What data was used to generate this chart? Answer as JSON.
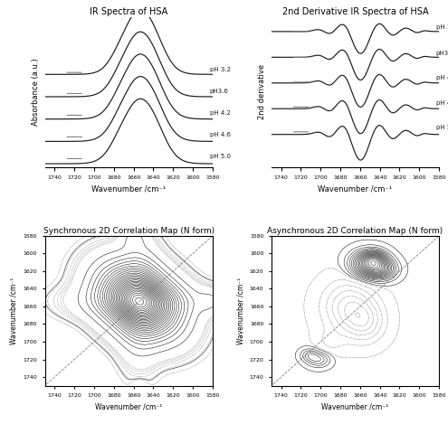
{
  "title_top_left": "IR Spectra of HSA",
  "title_top_right": "2nd Derivative IR Spectra of HSA",
  "title_bot_left": "Synchronous 2D Correlation Map (N form)",
  "title_bot_right": "Asynchronous 2D Correlation Map (N form)",
  "xlabel": "Wavenumber /cm⁻¹",
  "ylabel_tl": "Absorbance (a.u.)",
  "ylabel_tr": "2nd derivative",
  "ylabel_bot": "Wavenumber /cm⁻¹",
  "ph_labels": [
    "pH 3.2",
    "pH3.6",
    "pH 4.2",
    "pH 4.6",
    "pH 5.0"
  ],
  "line_color": "#1a1a1a",
  "ph_offsets_ir": [
    1.4,
    1.05,
    0.7,
    0.35,
    0.0
  ],
  "ph_offsets_2d": [
    0.9,
    0.6,
    0.3,
    0.0,
    -0.3
  ]
}
